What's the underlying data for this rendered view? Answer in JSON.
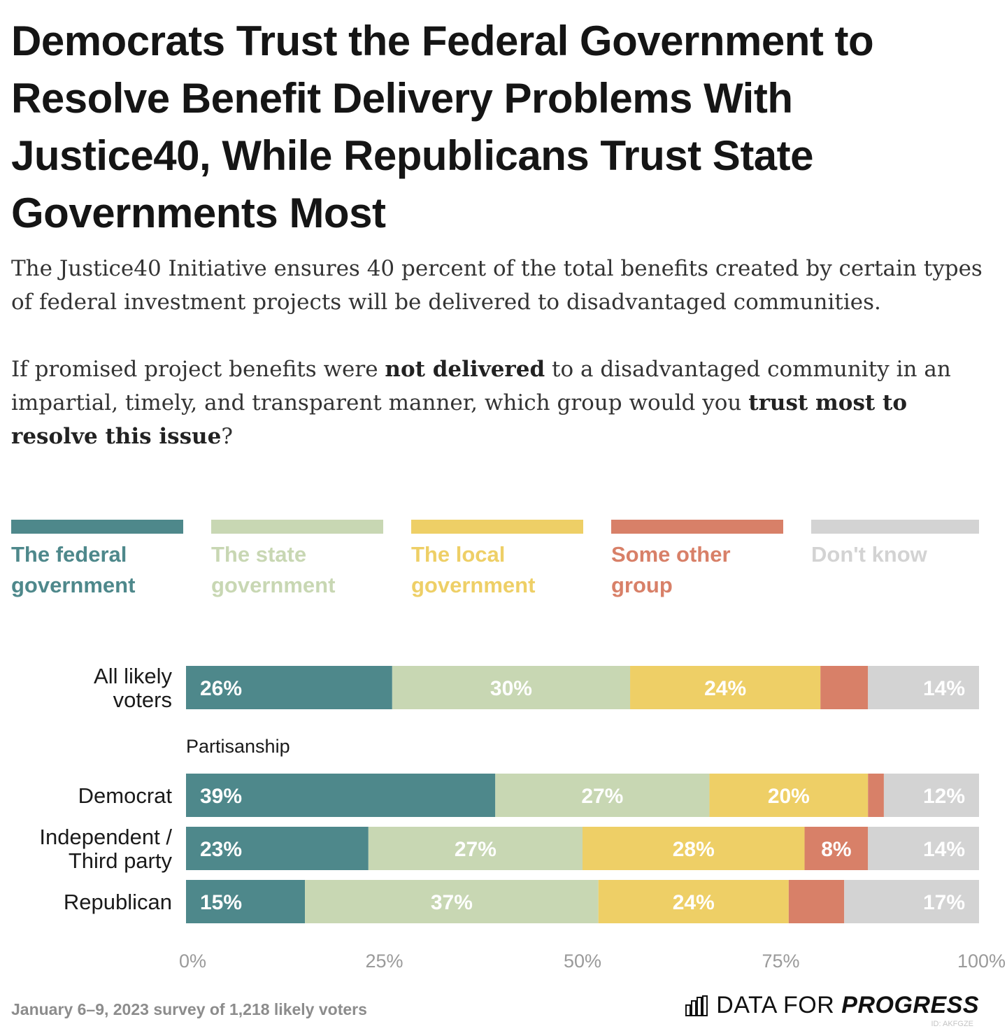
{
  "title": "Democrats Trust the Federal Government to Resolve Benefit Delivery Problems With Justice40, While Republicans Trust State Governments Most",
  "subtitle": {
    "p1": "The Justice40 Initiative ensures 40 percent of the total benefits created by certain types of federal investment projects will be delivered to disadvantaged communities.",
    "p2_a": "If promised project benefits were ",
    "p2_b": "not delivered",
    "p2_c": " to a disadvantaged community in an impartial, timely, and transparent manner, which group would you ",
    "p2_d": "trust most to resolve this issue",
    "p2_e": "?"
  },
  "colors": {
    "federal": "#4e888b",
    "state": "#c8d7b3",
    "local": "#eecf66",
    "other": "#d88068",
    "dontknow": "#d3d3d3"
  },
  "legend": [
    {
      "key": "federal",
      "line1": "The federal",
      "line2": "government",
      "color": "#4e888b"
    },
    {
      "key": "state",
      "line1": "The state",
      "line2": "government",
      "color": "#c8d7b3"
    },
    {
      "key": "local",
      "line1": "The local",
      "line2": "government",
      "color": "#eecf66"
    },
    {
      "key": "other",
      "line1": "Some other",
      "line2": "group",
      "color": "#d88068"
    },
    {
      "key": "dontknow",
      "line1": "Don't know",
      "line2": "",
      "color": "#d3d3d3"
    }
  ],
  "chart_data": {
    "type": "bar",
    "orientation": "horizontal-stacked",
    "series_names": [
      "The federal government",
      "The state government",
      "The local government",
      "Some other group",
      "Don't know"
    ],
    "section_label": "Partisanship",
    "rows": [
      {
        "label": [
          "All likely",
          "voters"
        ],
        "values": [
          26,
          30,
          24,
          6,
          14
        ],
        "labels": [
          "26%",
          "30%",
          "24%",
          "",
          "14%"
        ]
      },
      {
        "label": [
          "Democrat"
        ],
        "values": [
          39,
          27,
          20,
          2,
          12
        ],
        "labels": [
          "39%",
          "27%",
          "20%",
          "",
          "12%"
        ]
      },
      {
        "label": [
          "Independent /",
          "Third party"
        ],
        "values": [
          23,
          27,
          28,
          8,
          14
        ],
        "labels": [
          "23%",
          "27%",
          "28%",
          "8%",
          "14%"
        ]
      },
      {
        "label": [
          "Republican"
        ],
        "values": [
          15,
          37,
          24,
          7,
          17
        ],
        "labels": [
          "15%",
          "37%",
          "24%",
          "",
          "17%"
        ]
      }
    ],
    "x_ticks": [
      "0%",
      "25%",
      "50%",
      "75%",
      "100%"
    ],
    "xlim": [
      0,
      100
    ]
  },
  "footer": {
    "note": "January 6–9, 2023 survey of 1,218 likely voters",
    "brand_a": "DATA FOR",
    "brand_b": "PROGRESS",
    "chart_id": "ID: AKFGZE"
  }
}
